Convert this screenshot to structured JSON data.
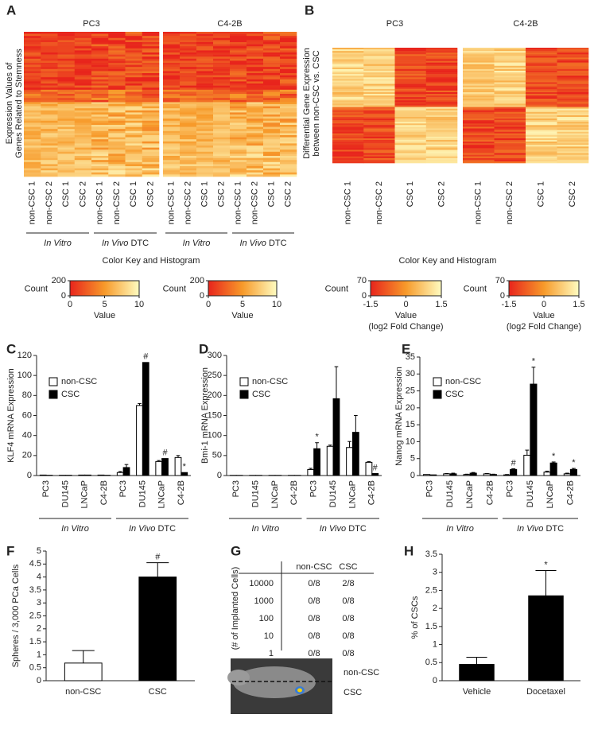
{
  "chart_data": [
    {
      "type": "heatmap",
      "panel": "A",
      "titles": [
        "PC3",
        "C4-2B"
      ],
      "ylabel": [
        "Expression Values of",
        "Genes Related to Stemness"
      ],
      "columns": [
        "non-CSC 1",
        "non-CSC 2",
        "CSC 1",
        "CSC 2",
        "non-CSC 1",
        "non-CSC 2",
        "CSC 1",
        "CSC 2"
      ],
      "groups": [
        {
          "italic": "In Vitro"
        },
        {
          "italic": "In Vivo",
          "plain": "DTC"
        }
      ],
      "key": {
        "title": "Color Key and Histogram",
        "ylabel": "Count",
        "xlabel": [
          "Value"
        ],
        "xlim": [
          0,
          10
        ],
        "xticks": [
          0,
          5,
          10
        ],
        "ylim": [
          0,
          200
        ],
        "yticks": [
          0,
          200
        ]
      }
    },
    {
      "type": "heatmap",
      "panel": "B",
      "titles": [
        "PC3",
        "C4-2B"
      ],
      "ylabel": [
        "Differential Gene Expression",
        "between non-CSC vs. CSC"
      ],
      "columns": [
        "non-CSC 1",
        "non-CSC 2",
        "CSC 1",
        "CSC 2"
      ],
      "key": {
        "title": "Color Key and Histogram",
        "ylabel": "Count",
        "xlabel": [
          "Value",
          "(log2 Fold Change)"
        ],
        "xlim": [
          -1.5,
          1.5
        ],
        "xticks": [
          -1.5,
          0,
          1.5
        ],
        "ylim": [
          0,
          70
        ],
        "yticks": [
          0,
          70
        ]
      }
    },
    {
      "type": "bar",
      "panel": "C",
      "ylabel": "KLF4 mRNA Expression",
      "legend": true,
      "categories": [
        "PC3",
        "DU145",
        "LNCaP",
        "C4-2B",
        "PC3",
        "DU145",
        "LNCaP",
        "C4-2B"
      ],
      "groups": [
        {
          "italic": "In Vitro"
        },
        {
          "italic": "In Vivo",
          "plain": "DTC"
        }
      ],
      "ylim": [
        0,
        120
      ],
      "yticks": [
        0,
        20,
        40,
        60,
        80,
        100,
        120
      ],
      "series": [
        {
          "name": "non-CSC",
          "color": "#ffffff",
          "values": [
            0.5,
            0.3,
            0.5,
            0.5,
            3,
            70,
            14,
            18
          ],
          "errors": [
            null,
            null,
            null,
            null,
            1,
            2,
            1,
            2
          ],
          "annotations": [
            null,
            null,
            null,
            null,
            null,
            null,
            null,
            null
          ]
        },
        {
          "name": "CSC",
          "color": "#000000",
          "values": [
            0.3,
            0.3,
            0.5,
            0.3,
            8,
            113,
            17,
            3
          ],
          "errors": [
            null,
            null,
            null,
            null,
            3,
            null,
            null,
            null
          ],
          "annotations": [
            null,
            null,
            null,
            null,
            null,
            "#",
            "#",
            "*"
          ]
        }
      ]
    },
    {
      "type": "bar",
      "panel": "D",
      "ylabel": "Bmi-1 mRNA Expression",
      "legend": true,
      "categories": [
        "PC3",
        "DU145",
        "LNCaP",
        "C4-2B",
        "PC3",
        "DU145",
        "LNCaP",
        "C4-2B"
      ],
      "groups": [
        {
          "italic": "In Vitro"
        },
        {
          "italic": "In Vivo",
          "plain": "DTC"
        }
      ],
      "ylim": [
        0,
        300
      ],
      "yticks": [
        0,
        50,
        100,
        150,
        200,
        250,
        300
      ],
      "series": [
        {
          "name": "non-CSC",
          "color": "#ffffff",
          "values": [
            0.5,
            0.5,
            0.5,
            0.5,
            15,
            73,
            70,
            33
          ],
          "errors": [
            null,
            null,
            null,
            null,
            3,
            3,
            15,
            2
          ],
          "annotations": [
            null,
            null,
            null,
            null,
            null,
            null,
            null,
            null
          ]
        },
        {
          "name": "CSC",
          "color": "#000000",
          "values": [
            0.5,
            0.5,
            0.5,
            0.5,
            67,
            192,
            108,
            5
          ],
          "errors": [
            null,
            null,
            null,
            null,
            15,
            80,
            42,
            null
          ],
          "annotations": [
            null,
            null,
            null,
            null,
            "*",
            null,
            null,
            "#"
          ]
        }
      ]
    },
    {
      "type": "bar",
      "panel": "E",
      "ylabel": "Nanog mRNA Expression",
      "legend": true,
      "categories": [
        "PC3",
        "DU145",
        "LNCaP",
        "C4-2B",
        "PC3",
        "DU145",
        "LNCaP",
        "C4-2B"
      ],
      "groups": [
        {
          "italic": "In Vitro"
        },
        {
          "italic": "In Vivo",
          "plain": "DTC"
        }
      ],
      "ylim": [
        0,
        35
      ],
      "yticks": [
        0,
        5,
        10,
        15,
        20,
        25,
        30,
        35
      ],
      "series": [
        {
          "name": "non-CSC",
          "color": "#ffffff",
          "values": [
            0.3,
            0.5,
            0.3,
            0.5,
            0.2,
            6,
            1,
            0.5
          ],
          "errors": [
            null,
            0.1,
            0.1,
            0.1,
            0.1,
            1.5,
            0.3,
            0.2
          ],
          "annotations": [
            null,
            null,
            null,
            null,
            null,
            null,
            null,
            null
          ]
        },
        {
          "name": "CSC",
          "color": "#000000",
          "values": [
            0.2,
            0.5,
            0.7,
            0.3,
            1.8,
            27,
            3.7,
            1.8
          ],
          "errors": [
            null,
            0.2,
            0.2,
            0.1,
            0.2,
            5,
            0.3,
            0.3
          ],
          "annotations": [
            null,
            null,
            null,
            null,
            "#",
            "*",
            "*",
            "*"
          ]
        }
      ]
    },
    {
      "type": "bar",
      "panel": "F",
      "ylabel": "Spheres / 3,000 PCa Cells",
      "categories": [
        "non-CSC",
        "CSC"
      ],
      "ylim": [
        0,
        5
      ],
      "yticks": [
        0,
        0.5,
        1,
        1.5,
        2,
        2.5,
        3,
        3.5,
        4,
        4.5,
        5
      ],
      "series": [
        {
          "colors": [
            "#ffffff",
            "#000000"
          ],
          "values": [
            0.68,
            4.0
          ],
          "errors": [
            0.48,
            0.55
          ],
          "annotations": [
            null,
            "#"
          ]
        }
      ]
    },
    {
      "type": "bar",
      "panel": "H",
      "ylabel": "% of CSCs",
      "categories": [
        "Vehicle",
        "Docetaxel"
      ],
      "ylim": [
        0,
        3.5
      ],
      "yticks": [
        0,
        0.5,
        1,
        1.5,
        2,
        2.5,
        3,
        3.5
      ],
      "series": [
        {
          "colors": [
            "#000000",
            "#000000"
          ],
          "values": [
            0.45,
            2.35
          ],
          "errors": [
            0.2,
            0.7
          ],
          "annotations": [
            null,
            "*"
          ]
        }
      ]
    }
  ],
  "table_panel": {
    "panel": "G",
    "row_header": "(# of Implanted Cells)",
    "columns": [
      "non-CSC",
      "CSC"
    ],
    "rows": [
      [
        "10000",
        "0/8",
        "2/8"
      ],
      [
        "1000",
        "0/8",
        "0/8"
      ],
      [
        "100",
        "0/8",
        "0/8"
      ],
      [
        "10",
        "0/8",
        "0/8"
      ],
      [
        "1",
        "0/8",
        "0/8"
      ]
    ],
    "image_labels": [
      "non-CSC",
      "CSC"
    ]
  }
}
